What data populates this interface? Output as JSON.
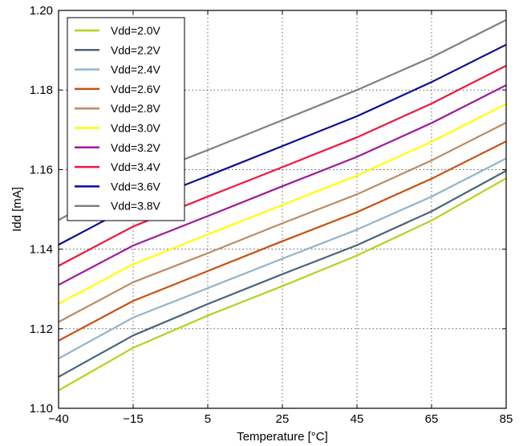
{
  "chart_data": {
    "type": "line",
    "xlabel": "Temperature [°C]",
    "ylabel": "Idd [mA]",
    "x": [
      -40,
      -15,
      5,
      25,
      45,
      65,
      85
    ],
    "x_tick_labels": [
      "−40",
      "−15",
      "5",
      "25",
      "45",
      "65",
      "85"
    ],
    "ylim": [
      1.1,
      1.2
    ],
    "y_ticks": [
      1.1,
      1.12,
      1.14,
      1.16,
      1.18,
      1.2
    ],
    "y_tick_labels": [
      "1.10",
      "1.12",
      "1.14",
      "1.16",
      "1.18",
      "1.20"
    ],
    "grid": true,
    "legend_position": "top-left",
    "series": [
      {
        "name": "Vdd=2.0V",
        "color": "#b5d21e",
        "values": [
          1.1045,
          1.1152,
          1.1233,
          1.1307,
          1.1384,
          1.1472,
          1.1578
        ]
      },
      {
        "name": "Vdd=2.2V",
        "color": "#4a6578",
        "values": [
          1.1079,
          1.1183,
          1.1262,
          1.1337,
          1.141,
          1.1495,
          1.1597
        ]
      },
      {
        "name": "Vdd=2.4V",
        "color": "#93b4cc",
        "values": [
          1.1125,
          1.1228,
          1.1302,
          1.1376,
          1.1449,
          1.1532,
          1.1628
        ]
      },
      {
        "name": "Vdd=2.6V",
        "color": "#c84f0e",
        "values": [
          1.117,
          1.127,
          1.1345,
          1.142,
          1.1493,
          1.1577,
          1.1671
        ]
      },
      {
        "name": "Vdd=2.8V",
        "color": "#c08a62",
        "values": [
          1.1217,
          1.1317,
          1.139,
          1.1465,
          1.1538,
          1.1623,
          1.1718
        ]
      },
      {
        "name": "Vdd=3.0V",
        "color": "#ffff00",
        "values": [
          1.1263,
          1.1362,
          1.1437,
          1.1511,
          1.1585,
          1.167,
          1.1765
        ]
      },
      {
        "name": "Vdd=3.2V",
        "color": "#a0179c",
        "values": [
          1.131,
          1.1409,
          1.1483,
          1.1558,
          1.1632,
          1.1717,
          1.1812
        ]
      },
      {
        "name": "Vdd=3.4V",
        "color": "#f0163c",
        "values": [
          1.1358,
          1.1457,
          1.1532,
          1.1606,
          1.1681,
          1.1766,
          1.1861
        ]
      },
      {
        "name": "Vdd=3.6V",
        "color": "#0a0a96",
        "values": [
          1.1411,
          1.151,
          1.1584,
          1.1659,
          1.1734,
          1.182,
          1.1914
        ]
      },
      {
        "name": "Vdd=3.8V",
        "color": "#808080",
        "values": [
          1.1473,
          1.1576,
          1.1649,
          1.1724,
          1.18,
          1.1882,
          1.1976
        ]
      }
    ]
  }
}
